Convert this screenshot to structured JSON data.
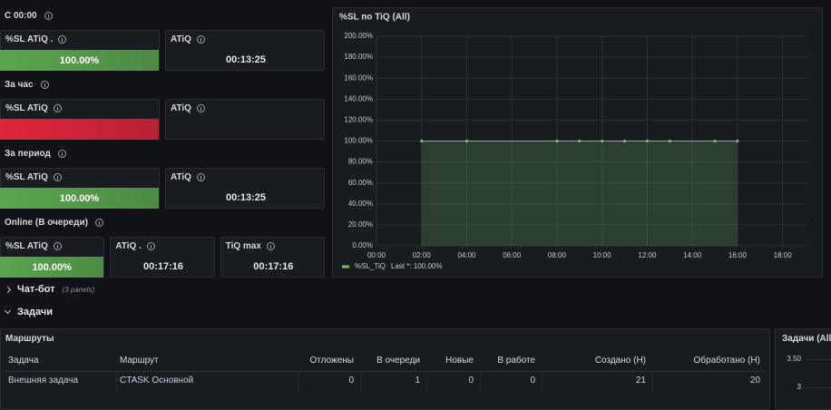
{
  "sections": [
    {
      "title": "С 00:00",
      "panels": [
        {
          "title": "%SL ATiQ .",
          "value": "100.00%",
          "color": "#5aa64e"
        },
        {
          "title": "ATiQ",
          "value": "00:13:25"
        }
      ]
    },
    {
      "title": "За час",
      "panels": [
        {
          "title": "%SL ATiQ",
          "color": "#e0243a"
        },
        {
          "title": "ATiQ"
        }
      ]
    },
    {
      "title": "За период",
      "panels": [
        {
          "title": "%SL ATiQ",
          "value": "100.00%",
          "color": "#5aa64e"
        },
        {
          "title": "ATiQ",
          "value": "00:13:25"
        }
      ]
    },
    {
      "title": "Online (В очереди)",
      "panels": [
        {
          "title": "%SL ATiQ",
          "value": "100.00%",
          "color": "#5aa64e"
        },
        {
          "title": "ATiQ .",
          "value": "00:17:16"
        },
        {
          "title": "TiQ max",
          "value": "00:17:16"
        }
      ]
    }
  ],
  "chart_data": {
    "type": "line",
    "title": "%SL по TiQ (All)",
    "x": [
      2,
      4,
      8,
      9,
      10,
      11,
      12,
      13,
      15,
      16
    ],
    "series": [
      {
        "name": "%SL_TiQ",
        "color": "#73bf69",
        "values": [
          100,
          100,
          100,
          100,
          100,
          100,
          100,
          100,
          100,
          100
        ]
      }
    ],
    "legend_stat": "Last *: 100.00%",
    "xlim": [
      0,
      19.1
    ],
    "xticks": [
      {
        "value": 0,
        "label": "00:00"
      },
      {
        "value": 2,
        "label": "02:00"
      },
      {
        "value": 4,
        "label": "04:00"
      },
      {
        "value": 6,
        "label": "06:00"
      },
      {
        "value": 8,
        "label": "08:00"
      },
      {
        "value": 10,
        "label": "10:00"
      },
      {
        "value": 12,
        "label": "12:00"
      },
      {
        "value": 14,
        "label": "14:00"
      },
      {
        "value": 16,
        "label": "16:00"
      },
      {
        "value": 18,
        "label": "18:00"
      }
    ],
    "ylim": [
      0,
      200
    ],
    "yticks": [
      {
        "value": 0,
        "label": "0.00%"
      },
      {
        "value": 20,
        "label": "20.00%"
      },
      {
        "value": 40,
        "label": "40.00%"
      },
      {
        "value": 60,
        "label": "60.00%"
      },
      {
        "value": 80,
        "label": "80.00%"
      },
      {
        "value": 100,
        "label": "100.00%"
      },
      {
        "value": 120,
        "label": "120.00%"
      },
      {
        "value": 140,
        "label": "140.00%"
      },
      {
        "value": 160,
        "label": "160.00%"
      },
      {
        "value": 180,
        "label": "180.00%"
      },
      {
        "value": 200,
        "label": "200.00%"
      }
    ],
    "grid": true,
    "area": true
  },
  "rows": [
    {
      "title": "Чат-бот",
      "note": "(3 panels)"
    },
    {
      "title": "Задачи"
    }
  ],
  "table": {
    "title": "Маршруты",
    "columns": [
      "Задача",
      "Маршрут",
      "Отложены",
      "В очереди",
      "Новые",
      "В работе",
      "Создано (Н)",
      "Обработано (Н)"
    ],
    "rows": [
      [
        "Внешняя задача",
        "CTASK Основной",
        0,
        1,
        0,
        0,
        21,
        20
      ]
    ]
  },
  "side_panel": {
    "title": "Задачи (All)",
    "yticks": [
      {
        "value": 3.5,
        "label": "3.50"
      },
      3
    ]
  }
}
